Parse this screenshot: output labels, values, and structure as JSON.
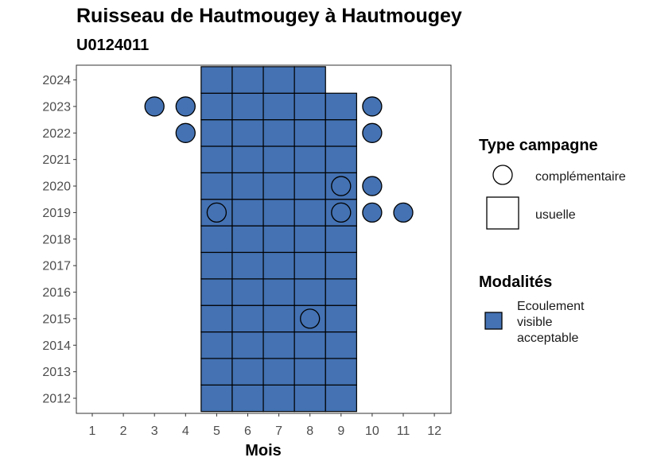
{
  "title": "Ruisseau de Hautmougey à Hautmougey",
  "subtitle": "U0124011",
  "chart_data": {
    "type": "heatmap",
    "xlabel": "Mois",
    "ylabel": "",
    "x_ticks": [
      1,
      2,
      3,
      4,
      5,
      6,
      7,
      8,
      9,
      10,
      11,
      12
    ],
    "y_ticks": [
      2012,
      2013,
      2014,
      2015,
      2016,
      2017,
      2018,
      2019,
      2020,
      2021,
      2022,
      2023,
      2024
    ],
    "xlim": [
      0.5,
      12.5
    ],
    "ylim": [
      2011.4,
      2024.6
    ],
    "fill_color": "#4472B3",
    "legend": {
      "shape_title": "Type campagne",
      "shape_items": [
        "complémentaire",
        "usuelle"
      ],
      "fill_title": "Modalités",
      "fill_items": [
        "Ecoulement\nvisible\nacceptable"
      ]
    },
    "usuelle": [
      {
        "month": 5,
        "years": [
          2012,
          2013,
          2014,
          2015,
          2016,
          2017,
          2018,
          2019,
          2020,
          2021,
          2022,
          2023,
          2024
        ]
      },
      {
        "month": 6,
        "years": [
          2012,
          2013,
          2014,
          2015,
          2016,
          2017,
          2018,
          2019,
          2020,
          2021,
          2022,
          2023,
          2024
        ]
      },
      {
        "month": 7,
        "years": [
          2012,
          2013,
          2014,
          2015,
          2016,
          2017,
          2018,
          2019,
          2020,
          2021,
          2022,
          2023,
          2024
        ]
      },
      {
        "month": 8,
        "years": [
          2012,
          2013,
          2014,
          2015,
          2016,
          2017,
          2018,
          2019,
          2020,
          2021,
          2022,
          2023,
          2024
        ]
      },
      {
        "month": 9,
        "years": [
          2012,
          2013,
          2014,
          2015,
          2016,
          2017,
          2018,
          2019,
          2020,
          2021,
          2022,
          2023
        ]
      }
    ],
    "complementaire": [
      {
        "month": 3,
        "year": 2023,
        "filled": true
      },
      {
        "month": 4,
        "year": 2023,
        "filled": true
      },
      {
        "month": 4,
        "year": 2022,
        "filled": true
      },
      {
        "month": 10,
        "year": 2023,
        "filled": true
      },
      {
        "month": 10,
        "year": 2022,
        "filled": true
      },
      {
        "month": 9,
        "year": 2020,
        "filled": false
      },
      {
        "month": 10,
        "year": 2020,
        "filled": true
      },
      {
        "month": 5,
        "year": 2019,
        "filled": false
      },
      {
        "month": 9,
        "year": 2019,
        "filled": false
      },
      {
        "month": 10,
        "year": 2019,
        "filled": true
      },
      {
        "month": 11,
        "year": 2019,
        "filled": true
      },
      {
        "month": 8,
        "year": 2015,
        "filled": false
      }
    ]
  }
}
